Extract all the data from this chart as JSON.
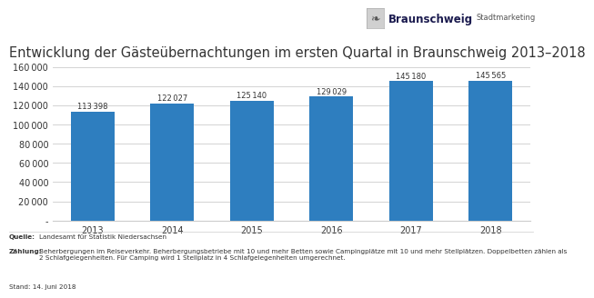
{
  "title": "Entwicklung der Gästeübernachtungen im ersten Quartal in Braunschweig 2013–2018",
  "categories": [
    "2013",
    "2014",
    "2015",
    "2016",
    "2017",
    "2018"
  ],
  "values": [
    113398,
    122027,
    125140,
    129029,
    145180,
    145565
  ],
  "bar_color": "#2E7EBF",
  "ylim": [
    0,
    160000
  ],
  "yticks": [
    0,
    20000,
    40000,
    60000,
    80000,
    100000,
    120000,
    140000,
    160000
  ],
  "ytick_labels": [
    "-",
    "20 000",
    "40 000",
    "60 000",
    "80 000",
    "100 000",
    "120 000",
    "140 000",
    "160 000"
  ],
  "value_labels": [
    "113 398",
    "122 027",
    "125 140",
    "129 029",
    "145 180",
    "145 565"
  ],
  "background_color": "#ffffff",
  "grid_color": "#cccccc",
  "bar_label_fontsize": 6.0,
  "title_fontsize": 10.5,
  "axis_fontsize": 7.0,
  "footer_fontsize": 5.2,
  "text_color": "#333333",
  "logo_text": "Braunschweig",
  "logo_subtext": "Stadtmarketing",
  "logo_color": "#1a1a4e",
  "footer_stand": "Stand: 14. Juni 2018"
}
